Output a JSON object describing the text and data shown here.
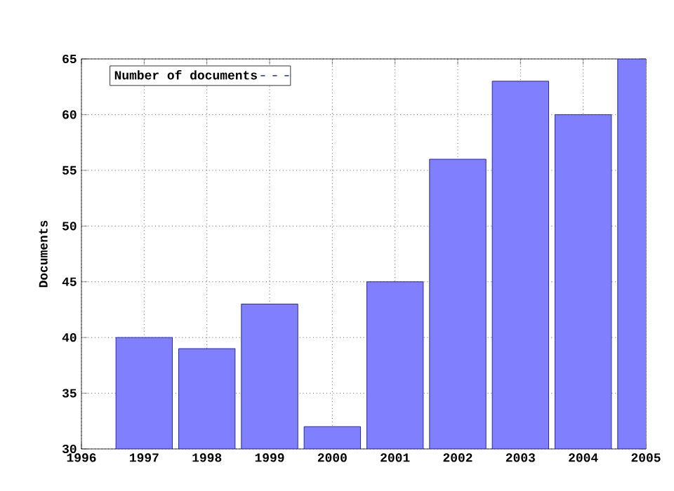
{
  "chart_data": {
    "type": "bar",
    "ylabel": "Documents",
    "x": [
      1997,
      1998,
      1999,
      2000,
      2001,
      2002,
      2003,
      2004,
      2005
    ],
    "series": [
      {
        "name": "Number of documents",
        "color": "#8080ff",
        "values": [
          40,
          39,
          43,
          32,
          45,
          56,
          63,
          60,
          65
        ]
      }
    ],
    "xlim": [
      1996,
      2005
    ],
    "xticks": [
      1996,
      1997,
      1998,
      1999,
      2000,
      2001,
      2002,
      2003,
      2004,
      2005
    ],
    "ylim": [
      30,
      65
    ],
    "yticks": [
      30,
      35,
      40,
      45,
      50,
      55,
      60,
      65
    ],
    "grid": true,
    "legend": "top left"
  }
}
